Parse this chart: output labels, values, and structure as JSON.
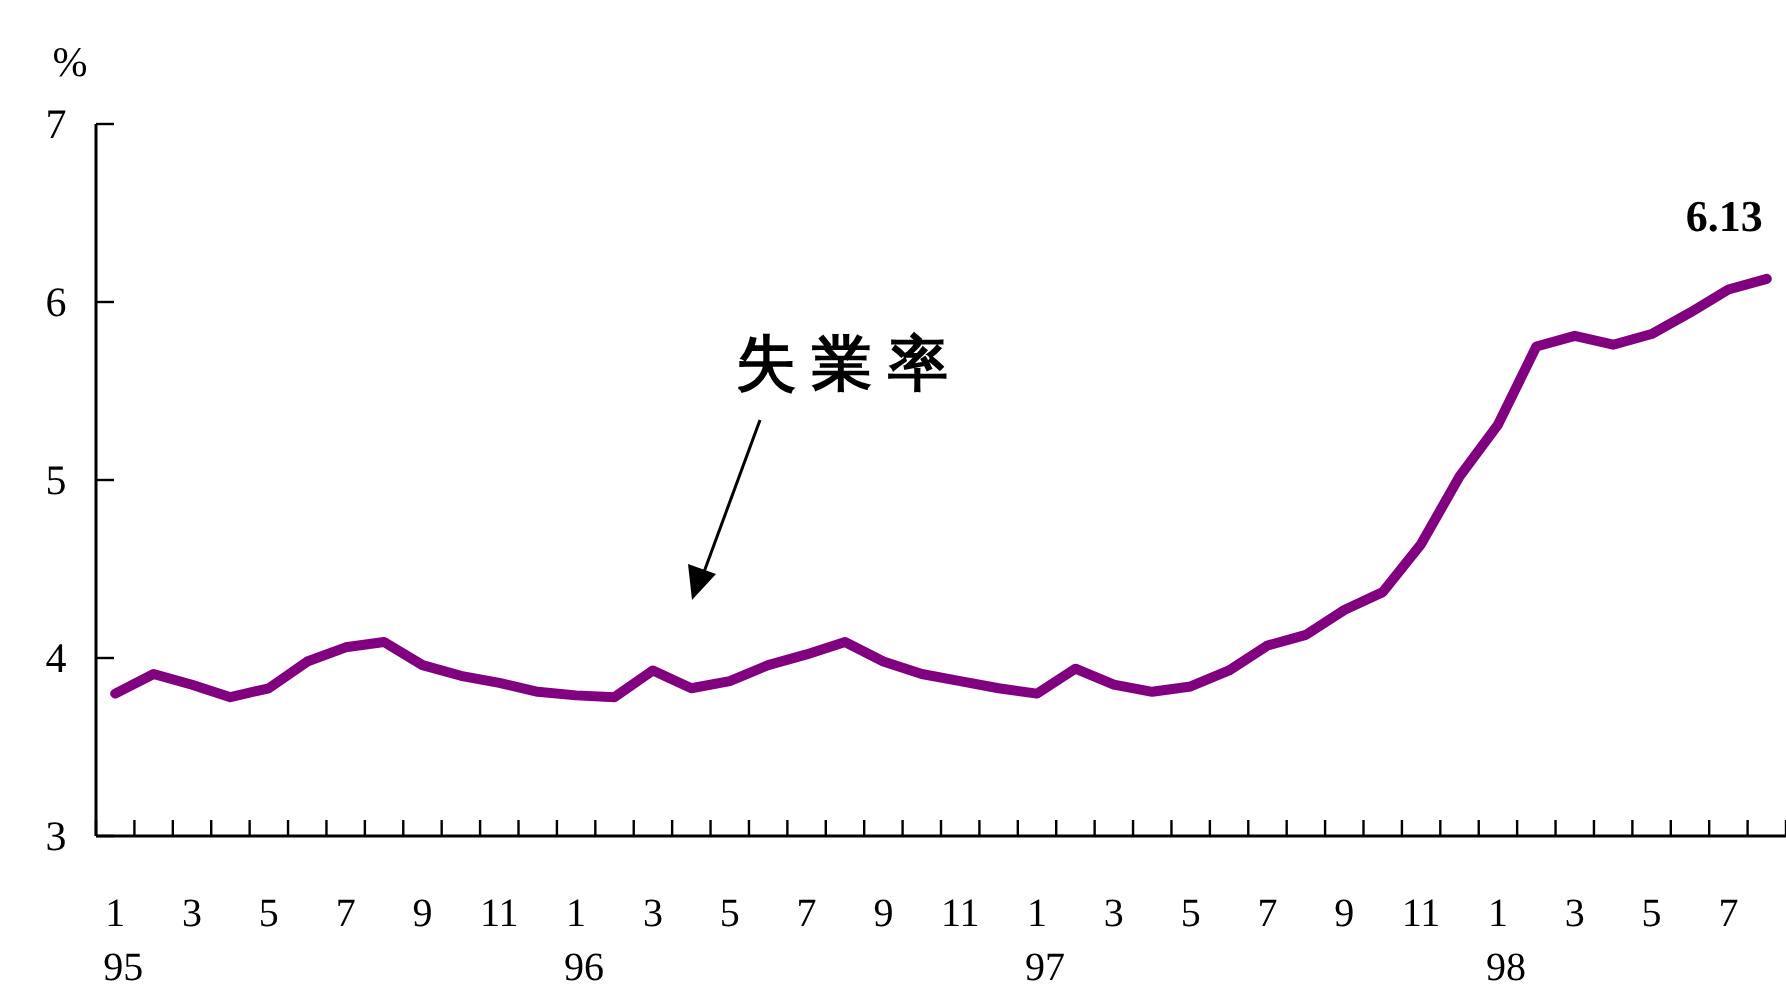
{
  "chart_data": {
    "type": "line",
    "ylabel": "%",
    "categories": [
      "1",
      null,
      "3",
      null,
      "5",
      null,
      "7",
      null,
      "9",
      null,
      "11",
      null,
      "1",
      null,
      "3",
      null,
      "5",
      null,
      "7",
      null,
      "9",
      null,
      "11",
      null,
      "1",
      null,
      "3",
      null,
      "5",
      null,
      "7",
      null,
      "9",
      null,
      "11",
      null,
      "1",
      null,
      "3",
      null,
      "5",
      null,
      "7",
      null
    ],
    "series": [
      {
        "color": "#800080",
        "values": [
          3.8,
          3.91,
          3.85,
          3.78,
          3.83,
          3.98,
          4.06,
          4.09,
          3.96,
          3.9,
          3.86,
          3.81,
          3.79,
          3.78,
          3.93,
          3.83,
          3.87,
          3.96,
          4.02,
          4.09,
          3.98,
          3.91,
          3.87,
          3.83,
          3.8,
          3.94,
          3.85,
          3.81,
          3.84,
          3.93,
          4.07,
          4.13,
          4.27,
          4.37,
          4.64,
          5.02,
          5.31,
          5.75,
          5.81,
          5.76,
          5.82,
          5.94,
          6.07,
          6.13
        ],
        "value_labels": [
          null,
          null,
          null,
          null,
          null,
          null,
          null,
          null,
          null,
          null,
          null,
          null,
          null,
          null,
          null,
          null,
          null,
          null,
          null,
          null,
          null,
          null,
          null,
          null,
          null,
          null,
          null,
          null,
          null,
          null,
          null,
          null,
          null,
          null,
          null,
          null,
          null,
          null,
          null,
          null,
          null,
          null,
          null,
          "6.13"
        ]
      }
    ],
    "ylim": [
      3,
      7
    ],
    "yticks": [
      3,
      4,
      5,
      6,
      7
    ],
    "marker": "none",
    "line_style": "solid",
    "annotations": [
      "失業率",
      "95",
      "96",
      "97",
      "98"
    ]
  }
}
